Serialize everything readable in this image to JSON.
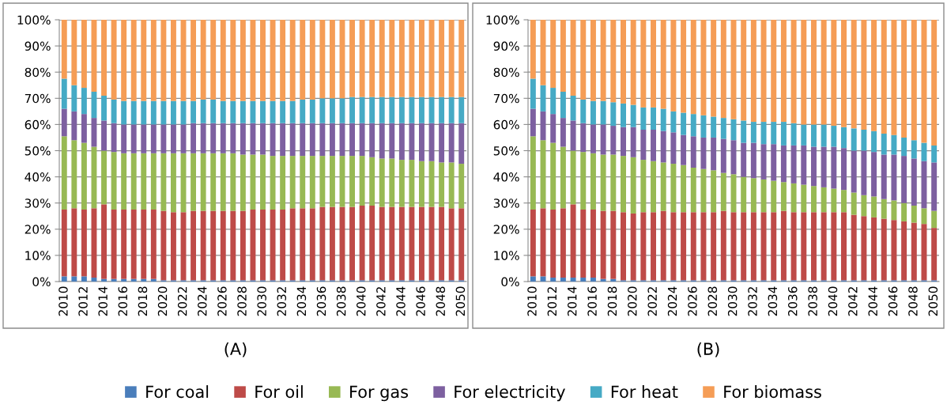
{
  "chart_data": [
    {
      "type": "bar",
      "stacked": true,
      "title": "(A)",
      "legend": "bottom",
      "grid": "y",
      "categories": [
        "2010",
        null,
        "2012",
        null,
        "2014",
        null,
        "2016",
        null,
        "2018",
        null,
        "2020",
        null,
        "2022",
        null,
        "2024",
        null,
        "2026",
        null,
        "2028",
        null,
        "2030",
        null,
        "2032",
        null,
        "2034",
        null,
        "2036",
        null,
        "2038",
        null,
        "2040",
        null,
        "2042",
        null,
        "2044",
        null,
        "2046",
        null,
        "2048",
        null,
        "2050"
      ],
      "ylim": [
        0,
        100
      ],
      "yticks": [
        {
          "value": 0,
          "label": "0%"
        },
        {
          "value": 10,
          "label": "10%"
        },
        {
          "value": 20,
          "label": "20%"
        },
        {
          "value": 30,
          "label": "30%"
        },
        {
          "value": 40,
          "label": "40%"
        },
        {
          "value": 50,
          "label": "50%"
        },
        {
          "value": 60,
          "label": "60%"
        },
        {
          "value": 70,
          "label": "70%"
        },
        {
          "value": 80,
          "label": "80%"
        },
        {
          "value": 90,
          "label": "90%"
        },
        {
          "value": 100,
          "label": "100%"
        }
      ],
      "series": [
        {
          "name": "For coal",
          "color": "#4a7ebb",
          "values": [
            2,
            2,
            2,
            1.5,
            1,
            1,
            1,
            1,
            1,
            1,
            0.5,
            0.5,
            0.5,
            0.5,
            0.5,
            0.5,
            0.5,
            0.5,
            0.5,
            0.5,
            0.5,
            0.5,
            0.5,
            0.5,
            0.5,
            0.5,
            0.5,
            0.5,
            0.5,
            0.5,
            0.5,
            0.5,
            0.5,
            0.5,
            0.5,
            0.5,
            0.5,
            0.5,
            0.5,
            0.5,
            0.5
          ]
        },
        {
          "name": "For oil",
          "color": "#be4b48",
          "values": [
            25.5,
            26,
            25.5,
            26.5,
            28.5,
            26.5,
            26.5,
            26.5,
            26.5,
            26.5,
            26.5,
            26,
            26,
            26.5,
            26.5,
            26.5,
            26.5,
            26.5,
            26.5,
            27,
            27,
            27,
            27,
            27.5,
            27.5,
            27.5,
            28,
            28,
            28,
            28,
            28.5,
            28.5,
            28,
            28,
            28,
            28,
            28,
            28,
            28,
            27.5,
            27.5
          ]
        },
        {
          "name": "For gas",
          "color": "#98b954",
          "values": [
            28,
            26,
            25.5,
            23.5,
            20.5,
            22,
            21.5,
            21.5,
            21.5,
            21.5,
            22,
            22.5,
            22.5,
            22,
            22,
            22,
            22,
            22,
            21.5,
            21,
            21,
            20.5,
            20.5,
            20,
            20,
            20,
            19.5,
            19.5,
            19.5,
            19.5,
            19,
            18.5,
            18.5,
            18.5,
            18,
            18,
            17.5,
            17.5,
            17,
            17.5,
            17
          ]
        },
        {
          "name": "For electricity",
          "color": "#7d60a0",
          "values": [
            10.5,
            11,
            11,
            11,
            11.5,
            11,
            11,
            11,
            11,
            11,
            11,
            11,
            11,
            11.5,
            11.5,
            11.5,
            11.5,
            11.5,
            12,
            12,
            12,
            12.5,
            12.5,
            12.5,
            12.5,
            12.5,
            12.5,
            12.5,
            12.5,
            12.5,
            12.5,
            13,
            13.5,
            13.5,
            14,
            14,
            14.5,
            14.5,
            15,
            15,
            15.5
          ]
        },
        {
          "name": "For heat",
          "color": "#46aac5",
          "values": [
            11.5,
            10,
            10,
            10,
            9.5,
            9,
            9,
            9,
            9,
            9,
            9,
            9,
            9,
            8.5,
            9,
            9,
            8.5,
            8.5,
            8.5,
            8.5,
            8.5,
            8.5,
            8.5,
            8.5,
            9,
            9,
            9.5,
            9.5,
            9.5,
            10,
            10,
            10,
            10,
            10,
            10,
            10,
            10,
            10,
            10,
            10,
            10
          ]
        },
        {
          "name": "For biomass",
          "color": "#f59d56",
          "values": [
            22.5,
            25,
            26,
            27.5,
            29,
            30.5,
            31,
            31,
            31,
            31,
            31,
            31,
            31,
            31,
            30.5,
            30.5,
            31,
            31,
            31,
            31,
            31,
            31,
            31,
            31,
            30.5,
            30.5,
            30,
            30,
            30,
            29.5,
            29.5,
            29.5,
            29.5,
            29.5,
            29.5,
            29.5,
            29.5,
            29.5,
            29.5,
            29.5,
            29.5
          ]
        }
      ]
    },
    {
      "type": "bar",
      "stacked": true,
      "title": "(B)",
      "grid": "y",
      "categories": [
        "2010",
        null,
        "2012",
        null,
        "2014",
        null,
        "2016",
        null,
        "2018",
        null,
        "2020",
        null,
        "2022",
        null,
        "2024",
        null,
        "2026",
        null,
        "2028",
        null,
        "2030",
        null,
        "2032",
        null,
        "2034",
        null,
        "2036",
        null,
        "2038",
        null,
        "2040",
        null,
        "2042",
        null,
        "2044",
        null,
        "2046",
        null,
        "2048",
        null,
        "2050"
      ],
      "ylim": [
        0,
        100
      ],
      "yticks": [
        {
          "value": 0,
          "label": "0%"
        },
        {
          "value": 10,
          "label": "10%"
        },
        {
          "value": 20,
          "label": "20%"
        },
        {
          "value": 30,
          "label": "30%"
        },
        {
          "value": 40,
          "label": "40%"
        },
        {
          "value": 50,
          "label": "50%"
        },
        {
          "value": 60,
          "label": "60%"
        },
        {
          "value": 70,
          "label": "70%"
        },
        {
          "value": 80,
          "label": "80%"
        },
        {
          "value": 90,
          "label": "90%"
        },
        {
          "value": 100,
          "label": "100%"
        }
      ],
      "series": [
        {
          "name": "For coal",
          "color": "#4a7ebb",
          "values": [
            2,
            2,
            1.5,
            1.5,
            1.5,
            1.5,
            1.5,
            1,
            1,
            0.5,
            0.5,
            0.5,
            0.5,
            0.5,
            0.5,
            0.5,
            0.5,
            0.5,
            0.5,
            0.5,
            0.5,
            0.5,
            0.5,
            0.5,
            0.5,
            0.5,
            0.5,
            0.5,
            0.5,
            0.5,
            0.5,
            0.5,
            0.5,
            0.5,
            0.5,
            0.5,
            0.5,
            0.5,
            0.5,
            0.5,
            0.5
          ]
        },
        {
          "name": "For oil",
          "color": "#be4b48",
          "values": [
            25.5,
            26,
            26,
            26.5,
            28,
            26,
            26,
            26,
            26,
            26,
            25.5,
            26,
            26,
            26.5,
            26,
            26,
            26,
            26,
            26,
            26.5,
            26,
            26,
            26,
            26,
            26,
            26.5,
            26,
            26,
            26,
            26,
            26,
            26,
            25,
            24.5,
            24,
            23.5,
            23,
            22.5,
            22,
            21.5,
            20
          ]
        },
        {
          "name": "For gas",
          "color": "#98b954",
          "values": [
            28,
            26,
            25.5,
            23.5,
            20.5,
            22,
            21.5,
            21.5,
            21.5,
            21.5,
            21.5,
            20,
            19.5,
            18.5,
            18.5,
            18,
            17,
            16.5,
            16,
            14.5,
            14.5,
            13.5,
            13,
            12.5,
            12,
            11,
            11,
            10.5,
            10,
            9.5,
            9,
            8.5,
            8.5,
            8,
            8,
            7.5,
            7.5,
            7,
            6.5,
            6,
            6.5
          ]
        },
        {
          "name": "For electricity",
          "color": "#7d60a0",
          "values": [
            10.5,
            11,
            11,
            11,
            11.5,
            11,
            11,
            11.5,
            11,
            11,
            11.5,
            11.5,
            12,
            12,
            12,
            11.5,
            12,
            12,
            12.5,
            13,
            13,
            13,
            13.5,
            13.5,
            14,
            14,
            14.5,
            15,
            15,
            15.5,
            16,
            16,
            16,
            17,
            17,
            17,
            17.5,
            18,
            18,
            18,
            18.5
          ]
        },
        {
          "name": "For heat",
          "color": "#46aac5",
          "values": [
            11.5,
            10,
            10,
            10,
            9.5,
            9,
            9,
            9,
            9,
            9,
            8.5,
            8.5,
            8.5,
            8.5,
            8,
            8.5,
            8.5,
            8.5,
            8,
            8,
            8,
            8.5,
            8,
            8.5,
            8.5,
            9,
            8.5,
            8,
            8.5,
            8.5,
            8,
            8,
            8.5,
            8,
            8,
            8,
            7.5,
            7,
            7,
            7,
            6.5
          ]
        },
        {
          "name": "For biomass",
          "color": "#f59d56",
          "values": [
            22.5,
            25,
            26,
            27.5,
            29,
            30.5,
            31,
            31,
            31.5,
            32,
            32.5,
            33.5,
            33.5,
            34,
            35,
            35.5,
            36,
            36.5,
            37,
            37.5,
            38,
            38.5,
            39,
            39,
            39,
            39,
            39.5,
            40,
            40,
            40,
            40.5,
            41,
            41.5,
            42,
            42.5,
            43.5,
            44,
            45,
            46,
            47,
            48
          ]
        }
      ]
    }
  ]
}
